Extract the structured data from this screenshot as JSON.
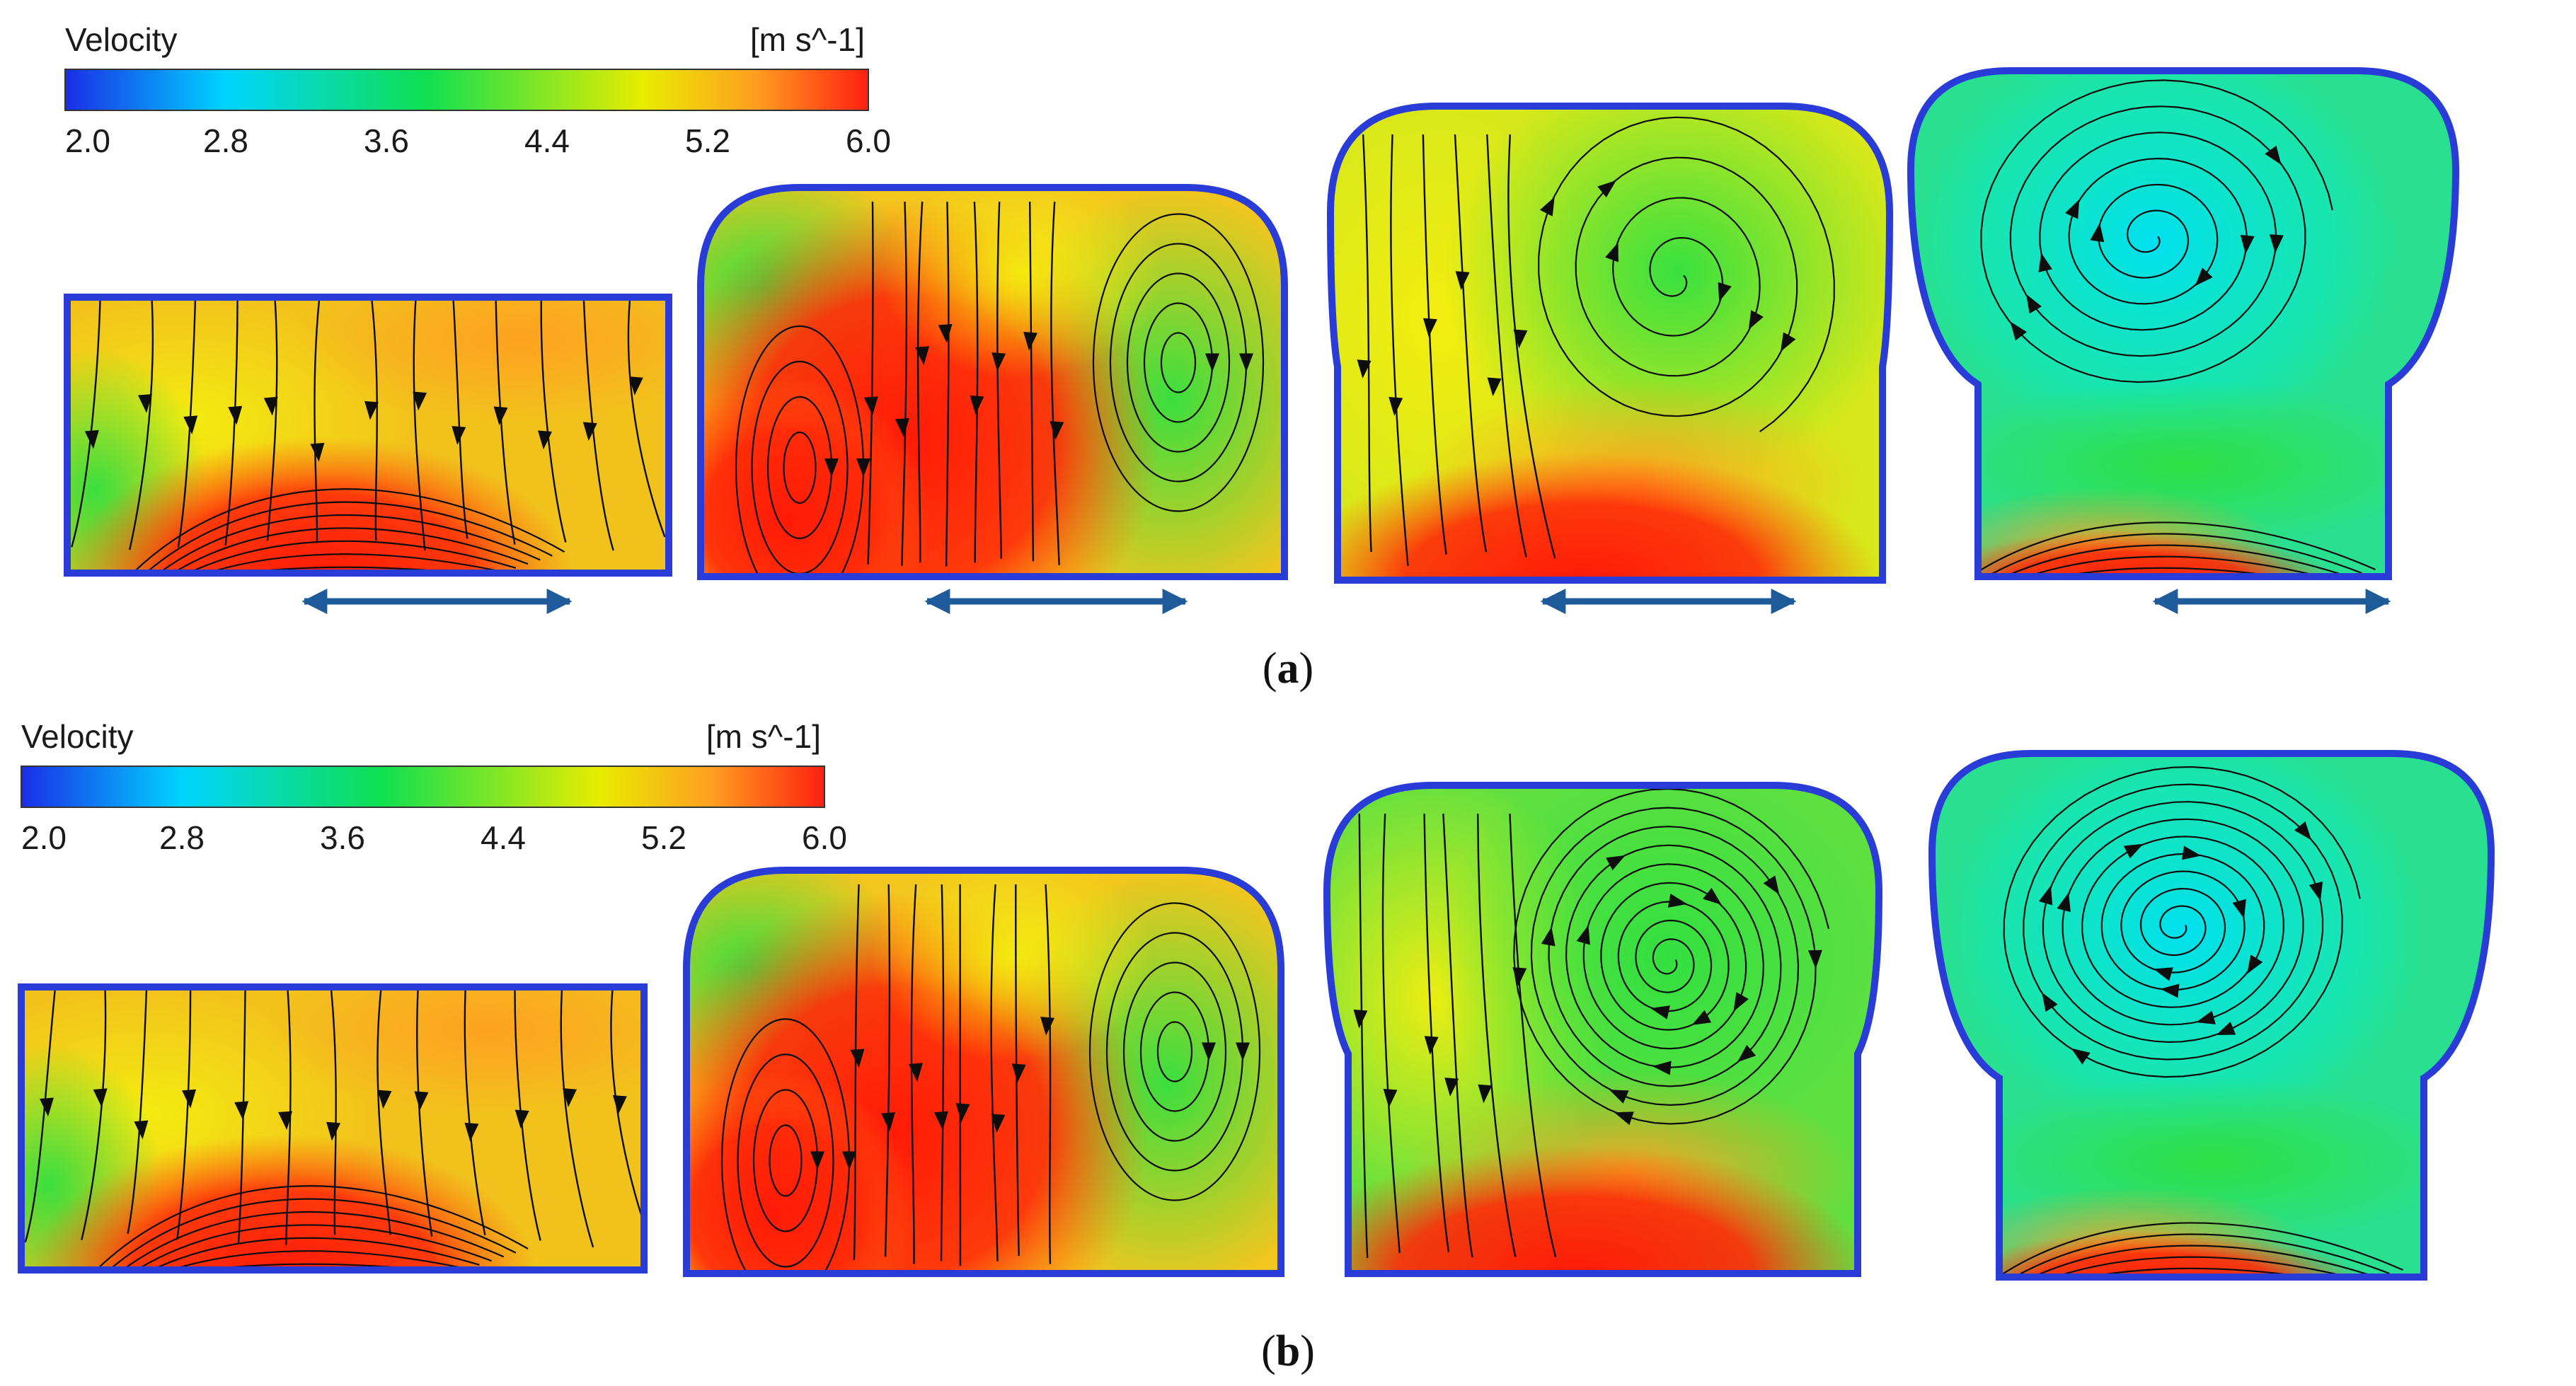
{
  "figure": {
    "rows": [
      {
        "id": "a",
        "caption": {
          "open": "(",
          "letter": "a",
          "close": ")"
        },
        "legend": {
          "title": "Velocity",
          "unit": "[m s^-1]",
          "ticks": [
            "2.0",
            "2.8",
            "3.6",
            "4.4",
            "5.2",
            "6.0"
          ],
          "range": [
            2.0,
            6.0
          ]
        },
        "has_motion_arrows": true
      },
      {
        "id": "b",
        "caption": {
          "open": "(",
          "letter": "b",
          "close": ")"
        },
        "legend": {
          "title": "Velocity",
          "unit": "[m s^-1]",
          "ticks": [
            "2.0",
            "2.8",
            "3.6",
            "4.4",
            "5.2",
            "6.0"
          ],
          "range": [
            2.0,
            6.0
          ]
        },
        "has_motion_arrows": false
      }
    ],
    "colormap": [
      "#1a2ee6",
      "#00d4ff",
      "#10e050",
      "#e8ec00",
      "#ff9e20",
      "#ff2010"
    ],
    "stroke_color": "#0d0d0d",
    "arrow_color": "#1f5b9a"
  }
}
